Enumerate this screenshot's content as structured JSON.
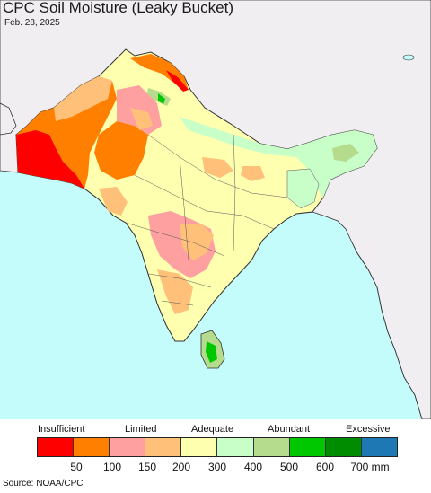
{
  "title": "CPC Soil Moisture (Leaky Bucket)",
  "date": "Feb. 28, 2025",
  "source": "Source: NOAA/CPC",
  "legend": {
    "categories": [
      "Insufficient",
      "Limited",
      "Adequate",
      "Abundant",
      "Excessive"
    ],
    "colors": [
      "#ff0000",
      "#ff7f00",
      "#ffa0a0",
      "#ffc07a",
      "#ffffb0",
      "#c8ffc8",
      "#b4dc8c",
      "#00c800",
      "#008c00",
      "#1e78b4"
    ],
    "ticks": [
      "50",
      "100",
      "150",
      "200",
      "300",
      "400",
      "500",
      "600",
      "700 mm"
    ]
  },
  "map_colors": {
    "ocean": "#c4fcfc",
    "outside_land": "#f0eef0",
    "border": "#333333"
  }
}
